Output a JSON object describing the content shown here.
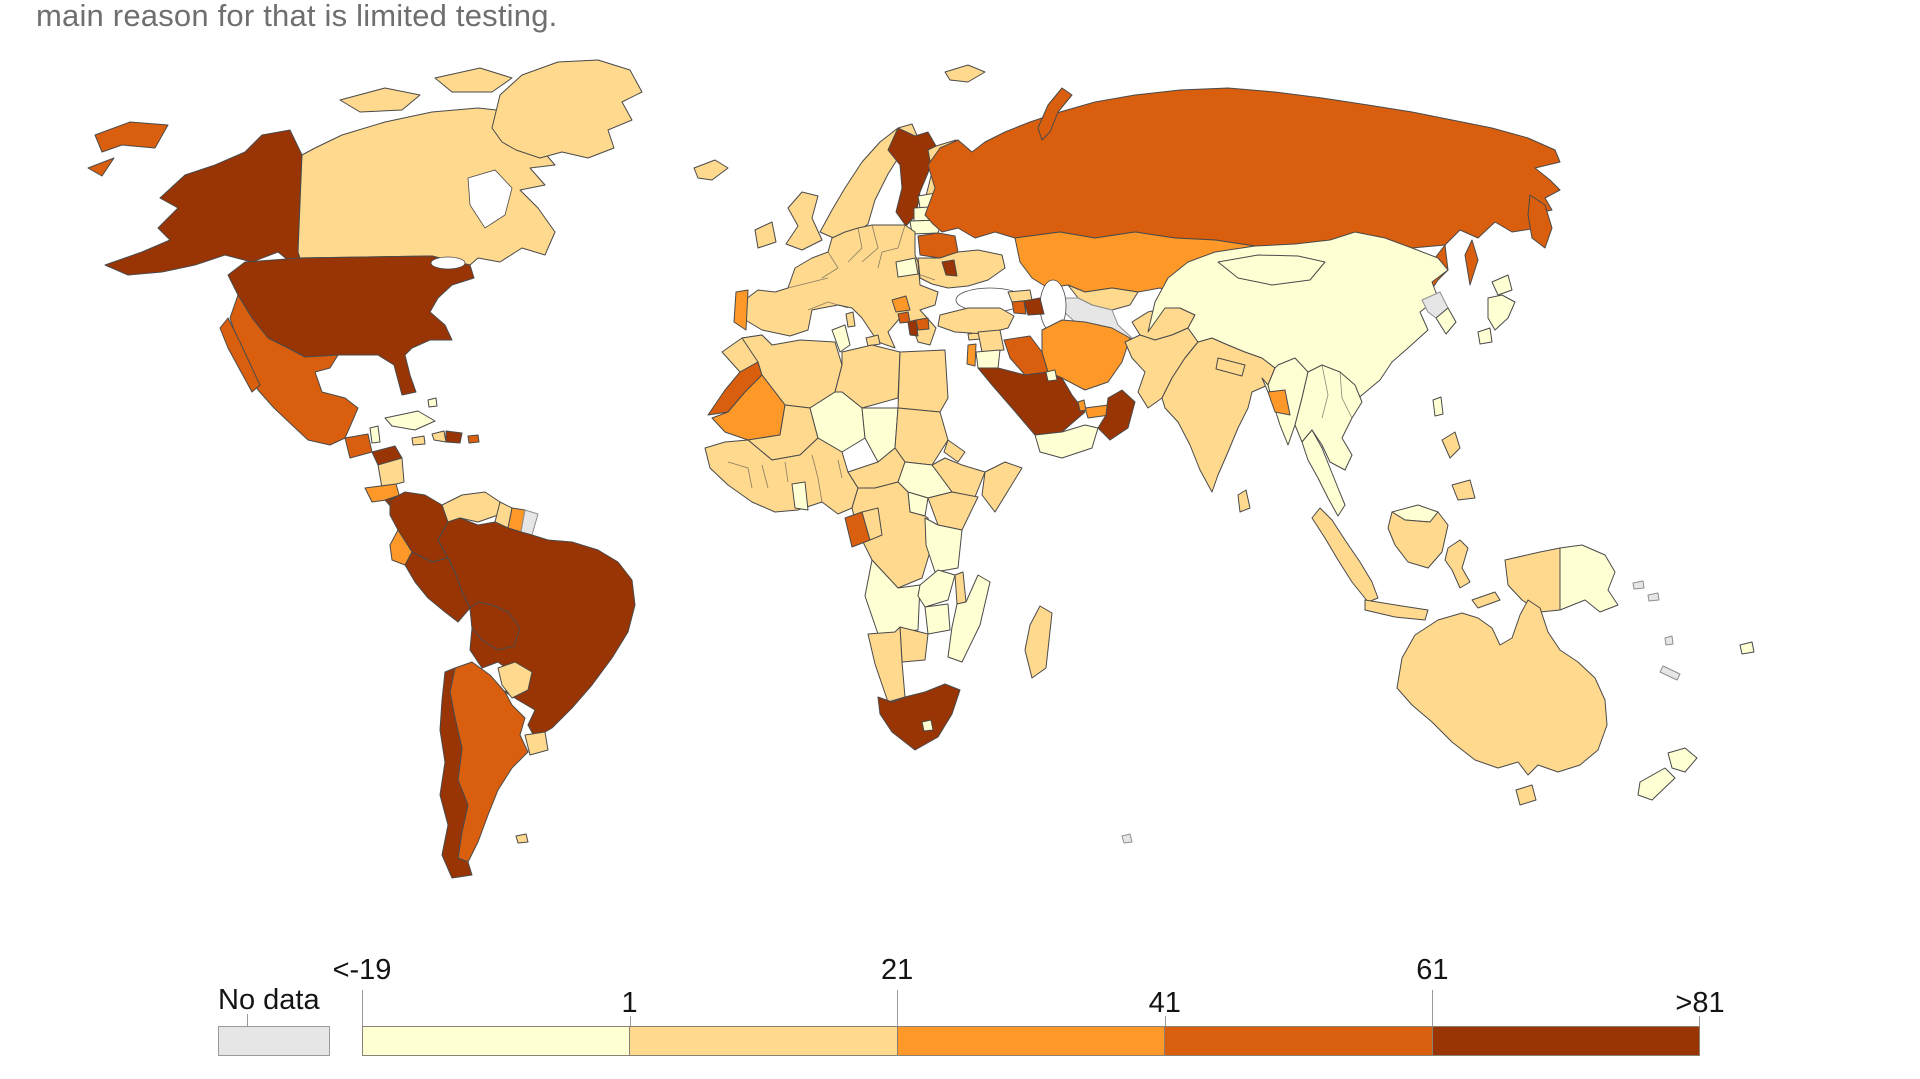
{
  "caption": "main reason for that is limited testing.",
  "legend": {
    "no_data_label": "No data",
    "no_data_color": "#e6e6e6",
    "tick_labels": [
      "<-19",
      "1",
      "21",
      "41",
      "61",
      ">81"
    ],
    "colors": [
      "#FFFFD4",
      "#FED98E",
      "#FE9929",
      "#D95F0E",
      "#993404"
    ]
  },
  "chart_data": {
    "type": "heatmap",
    "subtype": "choropleth-world-map",
    "title": "",
    "caption_fragment": "main reason for that is limited testing.",
    "legend": {
      "no_data_label": "No data",
      "thresholds": [
        "<-19",
        "1",
        "21",
        "41",
        "61",
        ">81"
      ],
      "class_ranges": [
        "<-19 to 1",
        "1 to 21",
        "21 to 41",
        "41 to 61",
        "61 to >81"
      ],
      "class_colors": [
        "#FFFFD4",
        "#FED98E",
        "#FE9929",
        "#D95F0E",
        "#993404"
      ],
      "no_data_color": "#e6e6e6",
      "position": "bottom"
    },
    "regions": {
      "united_states": 5,
      "canada": 2,
      "greenland": 2,
      "iceland": 2,
      "mexico": 4,
      "guatemala": 4,
      "belize": 1,
      "honduras": 5,
      "nicaragua": 2,
      "costa_rica": 3,
      "panama": 5,
      "cuba": 1,
      "bahamas": 1,
      "haiti": 2,
      "jamaica": 2,
      "dominican_republic": 5,
      "puerto_rico": 4,
      "colombia": 5,
      "venezuela": 2,
      "guyana": 2,
      "suriname": 3,
      "french_guiana": "no_data",
      "ecuador": 3,
      "peru": 5,
      "brazil": 5,
      "bolivia": 5,
      "paraguay": 2,
      "uruguay": 2,
      "argentina": 4,
      "chile": 5,
      "falkland_islands": 2,
      "norway": 2,
      "sweden": 5,
      "finland": 2,
      "denmark": 2,
      "estonia": 1,
      "latvia": 1,
      "lithuania": 1,
      "belarus": 4,
      "ukraine": 2,
      "moldova": 5,
      "poland": 2,
      "germany": 2,
      "france": 2,
      "united_kingdom": 2,
      "ireland": 2,
      "spain": 2,
      "portugal": 3,
      "italy": 2,
      "greece": 2,
      "hungary": 1,
      "romania": 2,
      "bulgaria": 2,
      "serbia": 2,
      "croatia": 2,
      "bosnia_and_herzegovina": 3,
      "montenegro": 4,
      "albania": 5,
      "north_macedonia": 4,
      "russia": 4,
      "kaliningrad": 4,
      "turkey": 2,
      "georgia": 2,
      "armenia": 4,
      "azerbaijan": 5,
      "syria": 2,
      "jordan": 1,
      "israel": 3,
      "iraq": 4,
      "iran": 3,
      "saudi_arabia": 5,
      "kuwait": 1,
      "qatar": 3,
      "united_arab_emirates": 3,
      "oman": 5,
      "yemen": 1,
      "kazakhstan": 3,
      "uzbekistan": 2,
      "turkmenistan": "no_data",
      "kyrgyzstan": 3,
      "tajikistan": 2,
      "afghanistan": 2,
      "pakistan": 2,
      "india": 2,
      "nepal": 2,
      "bangladesh": 3,
      "sri_lanka": 2,
      "myanmar": 1,
      "china": 1,
      "mongolia": 1,
      "north_korea": "no_data",
      "south_korea": 1,
      "japan": 1,
      "taiwan": 1,
      "thailand": 1,
      "laos": 1,
      "vietnam": 1,
      "cambodia": 1,
      "malaysia": 1,
      "indonesia": 2,
      "philippines": 2,
      "papua_new_guinea": 1,
      "australia": 2,
      "new_zealand": 1,
      "fiji": 1,
      "solomon_islands": "no_data",
      "new_caledonia": "no_data",
      "vanuatu": "no_data",
      "kerguelen": "no_data",
      "morocco": 2,
      "western_sahara": 4,
      "algeria": 2,
      "tunisia": 1,
      "libya": 2,
      "egypt": 2,
      "mauritania": 3,
      "mali": 2,
      "niger": 1,
      "chad": 1,
      "sudan": 2,
      "eritrea": 2,
      "ethiopia": 2,
      "somalia": 2,
      "senegal": 2,
      "guinea": 2,
      "cote_divoire": 2,
      "ghana": 1,
      "nigeria": 2,
      "cameroon": 2,
      "central_african_republic": 2,
      "south_sudan": 1,
      "uganda": 1,
      "kenya": 2,
      "dr_congo": 2,
      "congo": 2,
      "gabon": 4,
      "tanzania": 1,
      "angola": 1,
      "zambia": 1,
      "malawi": 2,
      "mozambique": 1,
      "zimbabwe": 1,
      "botswana": 2,
      "namibia": 2,
      "south_africa": 5,
      "lesotho": 1,
      "madagascar": 2
    }
  }
}
